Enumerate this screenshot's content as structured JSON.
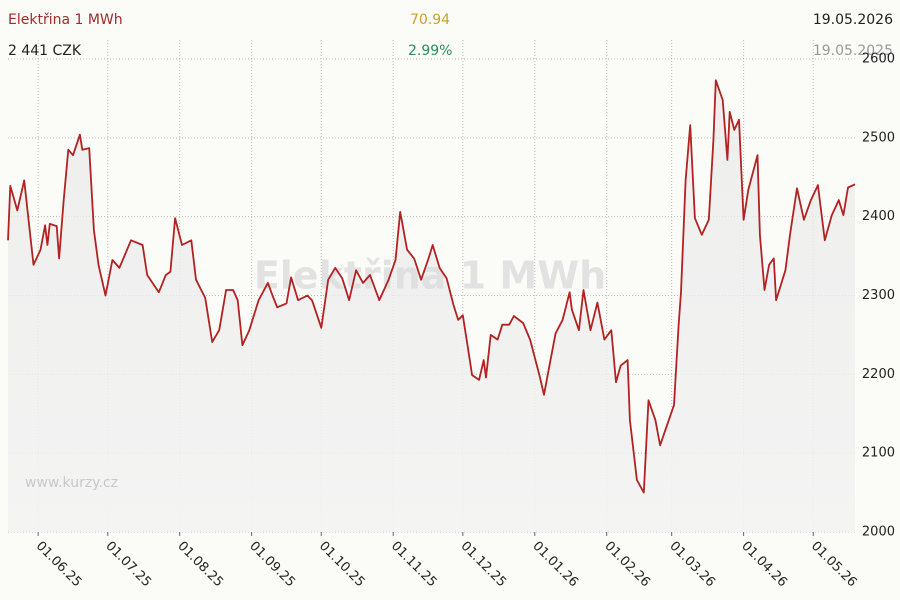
{
  "chart_data": {
    "type": "line",
    "title": "Elektřina 1 MWh",
    "change": "70.94",
    "change_percent": "2.99%",
    "date_end": "19.05.2026",
    "price": "2 441 CZK",
    "date_start": "19.05.2025",
    "watermark": "www.kurzy.cz",
    "color": "#b22222",
    "grid": true,
    "x": [
      "2025-05-19",
      "2025-05-20",
      "2025-05-23",
      "2025-05-26",
      "2025-05-30",
      "2025-06-02",
      "2025-06-04",
      "2025-06-05",
      "2025-06-06",
      "2025-06-09",
      "2025-06-10",
      "2025-06-12",
      "2025-06-14",
      "2025-06-16",
      "2025-06-19",
      "2025-06-20",
      "2025-06-23",
      "2025-06-25",
      "2025-06-27",
      "2025-06-30",
      "2025-07-03",
      "2025-07-06",
      "2025-07-11",
      "2025-07-16",
      "2025-07-18",
      "2025-07-23",
      "2025-07-26",
      "2025-07-28",
      "2025-07-30",
      "2025-08-02",
      "2025-08-06",
      "2025-08-08",
      "2025-08-12",
      "2025-08-15",
      "2025-08-18",
      "2025-08-21",
      "2025-08-24",
      "2025-08-26",
      "2025-08-28",
      "2025-08-31",
      "2025-09-04",
      "2025-09-08",
      "2025-09-10",
      "2025-09-12",
      "2025-09-16",
      "2025-09-18",
      "2025-09-21",
      "2025-09-25",
      "2025-09-27",
      "2025-10-01",
      "2025-10-04",
      "2025-10-07",
      "2025-10-10",
      "2025-10-13",
      "2025-10-16",
      "2025-10-19",
      "2025-10-22",
      "2025-10-26",
      "2025-10-30",
      "2025-11-02",
      "2025-11-04",
      "2025-11-07",
      "2025-11-10",
      "2025-11-13",
      "2025-11-16",
      "2025-11-18",
      "2025-11-21",
      "2025-11-24",
      "2025-11-27",
      "2025-11-29",
      "2025-12-01",
      "2025-12-03",
      "2025-12-05",
      "2025-12-08",
      "2025-12-10",
      "2025-12-11",
      "2025-12-13",
      "2025-12-16",
      "2025-12-18",
      "2025-12-21",
      "2025-12-23",
      "2025-12-27",
      "2025-12-30",
      "2026-01-03",
      "2026-01-05",
      "2026-01-07",
      "2026-01-10",
      "2026-01-13",
      "2026-01-16",
      "2026-01-17",
      "2026-01-20",
      "2026-01-22",
      "2026-01-25",
      "2026-01-28",
      "2026-01-31",
      "2026-02-03",
      "2026-02-05",
      "2026-02-07",
      "2026-02-10",
      "2026-02-11",
      "2026-02-14",
      "2026-02-17",
      "2026-02-19",
      "2026-02-22",
      "2026-02-24",
      "2026-02-26",
      "2026-03-02",
      "2026-03-04",
      "2026-03-05",
      "2026-03-07",
      "2026-03-09",
      "2026-03-11",
      "2026-03-14",
      "2026-03-17",
      "2026-03-19",
      "2026-03-20",
      "2026-03-23",
      "2026-03-25",
      "2026-03-26",
      "2026-03-28",
      "2026-03-30",
      "2026-04-01",
      "2026-04-03",
      "2026-04-07",
      "2026-04-08",
      "2026-04-10",
      "2026-04-12",
      "2026-04-14",
      "2026-04-15",
      "2026-04-19",
      "2026-04-21",
      "2026-04-24",
      "2026-04-27",
      "2026-04-30",
      "2026-05-03",
      "2026-05-06",
      "2026-05-09",
      "2026-05-12",
      "2026-05-14",
      "2026-05-16",
      "2026-05-19"
    ],
    "values": [
      2370,
      2439,
      2408,
      2446,
      2339,
      2358,
      2389,
      2364,
      2391,
      2388,
      2347,
      2421,
      2485,
      2478,
      2504,
      2485,
      2487,
      2383,
      2339,
      2300,
      2345,
      2335,
      2370,
      2364,
      2326,
      2304,
      2326,
      2330,
      2398,
      2364,
      2370,
      2320,
      2297,
      2241,
      2256,
      2307,
      2307,
      2294,
      2237,
      2256,
      2294,
      2316,
      2300,
      2285,
      2290,
      2323,
      2294,
      2300,
      2294,
      2259,
      2320,
      2335,
      2322,
      2294,
      2332,
      2316,
      2326,
      2294,
      2320,
      2345,
      2406,
      2358,
      2347,
      2320,
      2345,
      2364,
      2335,
      2322,
      2288,
      2269,
      2275,
      2237,
      2199,
      2193,
      2218,
      2196,
      2250,
      2244,
      2263,
      2263,
      2274,
      2265,
      2244,
      2199,
      2174,
      2206,
      2252,
      2269,
      2304,
      2282,
      2256,
      2307,
      2256,
      2291,
      2244,
      2256,
      2190,
      2211,
      2218,
      2142,
      2066,
      2050,
      2167,
      2142,
      2110,
      2127,
      2161,
      2262,
      2304,
      2446,
      2516,
      2398,
      2377,
      2396,
      2497,
      2573,
      2548,
      2472,
      2533,
      2510,
      2523,
      2396,
      2434,
      2478,
      2377,
      2307,
      2339,
      2347,
      2294,
      2332,
      2377,
      2436,
      2396,
      2421,
      2440,
      2370,
      2402,
      2421,
      2402,
      2437,
      2441
    ],
    "xlim": [
      "2025-05-19",
      "2026-05-19"
    ],
    "xticks": [
      {
        "value": "2025-06-01",
        "label": "01.06.25"
      },
      {
        "value": "2025-07-01",
        "label": "01.07.25"
      },
      {
        "value": "2025-08-01",
        "label": "01.08.25"
      },
      {
        "value": "2025-09-01",
        "label": "01.09.25"
      },
      {
        "value": "2025-10-01",
        "label": "01.10.25"
      },
      {
        "value": "2025-11-01",
        "label": "01.11.25"
      },
      {
        "value": "2025-12-01",
        "label": "01.12.25"
      },
      {
        "value": "2026-01-01",
        "label": "01.01.26"
      },
      {
        "value": "2026-02-01",
        "label": "01.02.26"
      },
      {
        "value": "2026-03-01",
        "label": "01.03.26"
      },
      {
        "value": "2026-04-01",
        "label": "01.04.26"
      },
      {
        "value": "2026-05-01",
        "label": "01.05.26"
      }
    ],
    "ylim": [
      2000,
      2600
    ],
    "yticks": [
      2000,
      2100,
      2200,
      2300,
      2400,
      2500,
      2600
    ]
  }
}
